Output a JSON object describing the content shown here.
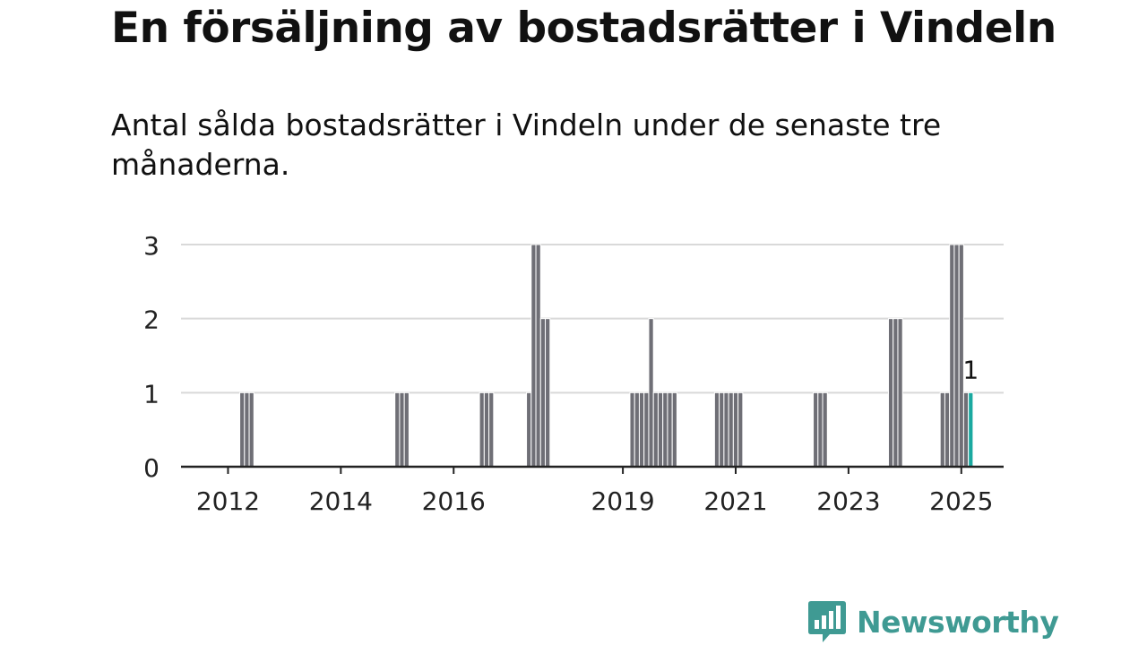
{
  "header": {
    "title": "En försäljning av bostadsrätter i Vindeln",
    "subtitle": "Antal sålda bostadsrätter i Vindeln under de senaste tre månaderna."
  },
  "colors": {
    "bar": "#6f6f76",
    "highlight": "#1aa9a0",
    "grid": "#d9d9d9",
    "axis": "#222222",
    "brand": "#3f9a93"
  },
  "brand": {
    "name": "Newsworthy",
    "icon": "bar-chart-speech-bubble-icon"
  },
  "chart_data": {
    "type": "bar",
    "title": "En försäljning av bostadsrätter i Vindeln",
    "subtitle": "Antal sålda bostadsrätter i Vindeln under de senaste tre månaderna.",
    "xlabel": "",
    "ylabel": "",
    "x_unit": "months",
    "xlim": [
      "2011-03",
      "2025-10"
    ],
    "ylim": [
      0,
      3
    ],
    "yticks": [
      0,
      1,
      2,
      3
    ],
    "xticks": [
      "2012",
      "2014",
      "2016",
      "2019",
      "2021",
      "2023",
      "2025"
    ],
    "grid": true,
    "legend": "none",
    "highlight_label": "1",
    "months": [
      "2012-04",
      "2012-05",
      "2012-06",
      "2015-01",
      "2015-02",
      "2015-03",
      "2016-07",
      "2016-08",
      "2016-09",
      "2017-05",
      "2017-06",
      "2017-07",
      "2017-08",
      "2017-09",
      "2019-03",
      "2019-04",
      "2019-05",
      "2019-06",
      "2019-07",
      "2019-08",
      "2019-09",
      "2019-10",
      "2019-11",
      "2019-12",
      "2020-09",
      "2020-10",
      "2020-11",
      "2020-12",
      "2021-01",
      "2021-02",
      "2022-06",
      "2022-07",
      "2022-08",
      "2023-10",
      "2023-11",
      "2023-12",
      "2024-09",
      "2024-10",
      "2024-11",
      "2024-12",
      "2025-01",
      "2025-02",
      "2025-03"
    ],
    "values": [
      1,
      1,
      1,
      1,
      1,
      1,
      1,
      1,
      1,
      1,
      3,
      3,
      2,
      2,
      1,
      1,
      1,
      1,
      2,
      1,
      1,
      1,
      1,
      1,
      1,
      1,
      1,
      1,
      1,
      1,
      1,
      1,
      1,
      2,
      2,
      2,
      1,
      1,
      3,
      3,
      3,
      1,
      1
    ],
    "highlight": [
      false,
      false,
      false,
      false,
      false,
      false,
      false,
      false,
      false,
      false,
      false,
      false,
      false,
      false,
      false,
      false,
      false,
      false,
      false,
      false,
      false,
      false,
      false,
      false,
      false,
      false,
      false,
      false,
      false,
      false,
      false,
      false,
      false,
      false,
      false,
      false,
      false,
      false,
      false,
      false,
      false,
      false,
      true
    ]
  }
}
